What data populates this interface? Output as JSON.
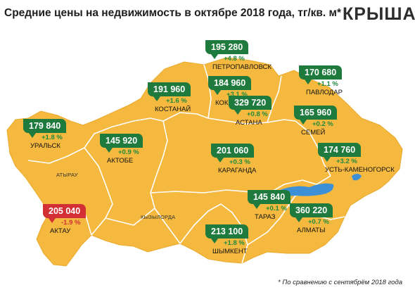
{
  "title": "Средние цены на недвижимость в октябре 2018 года, тг/кв. м*",
  "logo": "КРЫША",
  "footnote": "* По сравнению с сентябрём 2018 года",
  "colors": {
    "land": "#f5b93f",
    "border": "#ffffff",
    "marker_up": "#1f7a3e",
    "marker_down": "#d23034",
    "change_up": "#1f8a3b",
    "water": "#3d8fd6"
  },
  "regions": [
    "АТЫРАУ",
    "КЫЗЫЛОРДА"
  ],
  "cities": [
    {
      "id": "petropavlovsk",
      "price": "195 280",
      "change": "+4.8 %",
      "name": "ПЕТРОПАВЛОВСК",
      "direction": "up"
    },
    {
      "id": "pavlodar",
      "price": "170 680",
      "change": "+1.1 %",
      "name": "ПАВЛОДАР",
      "direction": "up"
    },
    {
      "id": "kostanay",
      "price": "191 960",
      "change": "+1.6 %",
      "name": "КОСТАНАЙ",
      "direction": "up"
    },
    {
      "id": "kokshetau",
      "price": "184 960",
      "change": "+3.1 %",
      "name": "КОКШЕТАУ",
      "direction": "up"
    },
    {
      "id": "astana",
      "price": "329 720",
      "change": "+0.8 %",
      "name": "АСТАНА",
      "direction": "up"
    },
    {
      "id": "semey",
      "price": "165 960",
      "change": "+0.2 %",
      "name": "СЕМЕЙ",
      "direction": "up"
    },
    {
      "id": "uralsk",
      "price": "179 840",
      "change": "+1.8 %",
      "name": "УРАЛЬСК",
      "direction": "up"
    },
    {
      "id": "aktobe",
      "price": "145 920",
      "change": "+0.9 %",
      "name": "АКТОБЕ",
      "direction": "up"
    },
    {
      "id": "karaganda",
      "price": "201 060",
      "change": "+0.3 %",
      "name": "КАРАГАНДА",
      "direction": "up"
    },
    {
      "id": "ust-kamenogorsk",
      "price": "174 760",
      "change": "+3.2 %",
      "name": "УСТЬ-КАМЕНОГОРСК",
      "direction": "up"
    },
    {
      "id": "aktau",
      "price": "205 040",
      "change": "-1.9 %",
      "name": "АКТАУ",
      "direction": "down"
    },
    {
      "id": "taraz",
      "price": "145 840",
      "change": "+0.1 %",
      "name": "ТАРАЗ",
      "direction": "up"
    },
    {
      "id": "almaty",
      "price": "360 220",
      "change": "+0.7 %",
      "name": "АЛМАТЫ",
      "direction": "up"
    },
    {
      "id": "shymkent",
      "price": "213 100",
      "change": "+1.8 %",
      "name": "ШЫМКЕНТ",
      "direction": "up"
    }
  ]
}
